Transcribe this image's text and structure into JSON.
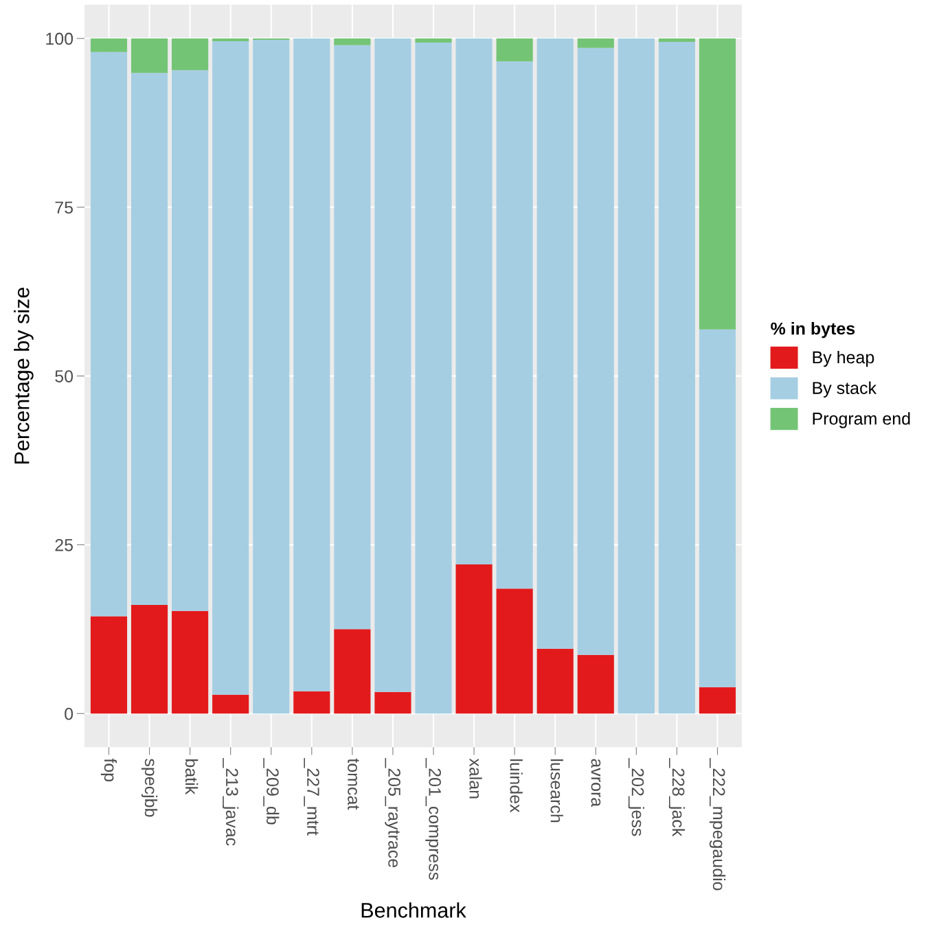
{
  "chart_data": {
    "type": "bar",
    "stacked": true,
    "xlabel": "Benchmark",
    "ylabel": "Percentage by size",
    "legend_title": "% in bytes",
    "legend": "right",
    "grid": true,
    "categories": [
      "fop",
      "specjbb",
      "batik",
      "_213_javac",
      "_209_db",
      "_227_mtrt",
      "tomcat",
      "_205_raytrace",
      "_201_compress",
      "xalan",
      "luindex",
      "lusearch",
      "avrora",
      "_202_jess",
      "_228_jack",
      "_222_mpegaudio"
    ],
    "ylim": [
      -5,
      105
    ],
    "yticks": [
      0,
      25,
      50,
      75,
      100
    ],
    "series": [
      {
        "name": "By heap",
        "color": "#e31a1c",
        "values": [
          14.4,
          16.1,
          15.2,
          2.8,
          0,
          3.3,
          12.5,
          3.2,
          0,
          22.1,
          18.5,
          9.6,
          8.7,
          0,
          0,
          3.9
        ]
      },
      {
        "name": "By stack",
        "color": "#a6cee3",
        "values": [
          83.6,
          78.8,
          80.1,
          96.8,
          99.8,
          96.7,
          86.5,
          96.8,
          99.4,
          77.9,
          78.1,
          90.4,
          89.9,
          100,
          99.5,
          53.0
        ]
      },
      {
        "name": "Program end",
        "color": "#74c476",
        "values": [
          2.0,
          5.1,
          4.7,
          0.4,
          0.2,
          0,
          1.0,
          0,
          0.6,
          0,
          3.4,
          0,
          1.4,
          0,
          0.5,
          43.1
        ]
      }
    ]
  }
}
